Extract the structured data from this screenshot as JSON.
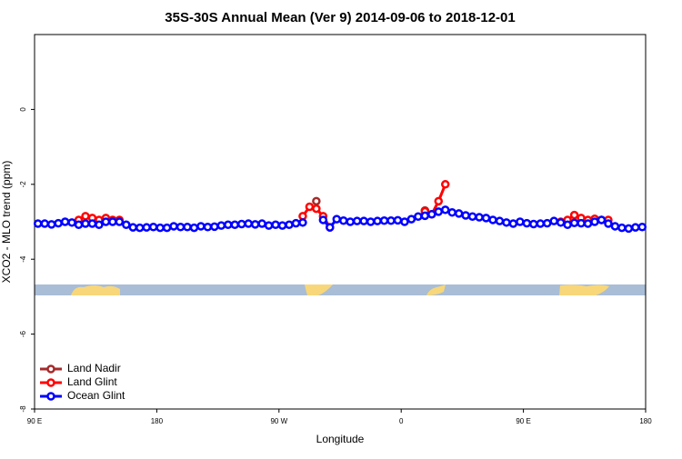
{
  "chart_data": {
    "type": "line",
    "title": "35S-30S Annual Mean (Ver 9)   2014-09-06 to 2018-12-01",
    "x_label": "Longitude",
    "y_label": "XCO2 - MLO trend (ppm)",
    "xlim": [
      90,
      540
    ],
    "xticks": [
      {
        "value": 90,
        "label": "90 E"
      },
      {
        "value": 180,
        "label": "180"
      },
      {
        "value": 270,
        "label": "90 W"
      },
      {
        "value": 360,
        "label": "0"
      },
      {
        "value": 450,
        "label": "90 E"
      },
      {
        "value": 540,
        "label": "180"
      }
    ],
    "ylim": [
      -8,
      2
    ],
    "yticks": [
      -8,
      -6,
      -4,
      -2,
      0
    ],
    "legend": "bottom-left",
    "x": [
      92.5,
      97.5,
      102.5,
      107.5,
      112.5,
      117.5,
      122.5,
      127.5,
      132.5,
      137.5,
      142.5,
      147.5,
      152.5,
      157.5,
      162.5,
      167.5,
      172.5,
      177.5,
      182.5,
      187.5,
      192.5,
      197.5,
      202.5,
      207.5,
      212.5,
      217.5,
      222.5,
      227.5,
      232.5,
      237.5,
      242.5,
      247.5,
      252.5,
      257.5,
      262.5,
      267.5,
      272.5,
      277.5,
      282.5,
      287.5,
      292.5,
      297.5,
      302.5,
      307.5,
      312.5,
      317.5,
      322.5,
      327.5,
      332.5,
      337.5,
      342.5,
      347.5,
      352.5,
      357.5,
      362.5,
      367.5,
      372.5,
      377.5,
      382.5,
      387.5,
      392.5,
      397.5,
      402.5,
      407.5,
      412.5,
      417.5,
      422.5,
      427.5,
      432.5,
      437.5,
      442.5,
      447.5,
      452.5,
      457.5,
      462.5,
      467.5,
      472.5,
      477.5,
      482.5,
      487.5,
      492.5,
      497.5,
      502.5,
      507.5,
      512.5,
      517.5,
      522.5,
      527.5,
      532.5,
      537.5
    ],
    "series": [
      {
        "name": "Land Nadir",
        "color": "#a52a2a",
        "values": [
          null,
          null,
          null,
          null,
          null,
          null,
          null,
          null,
          null,
          null,
          null,
          null,
          null,
          null,
          null,
          null,
          null,
          null,
          null,
          null,
          null,
          null,
          null,
          null,
          null,
          null,
          null,
          null,
          null,
          null,
          null,
          null,
          null,
          null,
          null,
          null,
          null,
          null,
          null,
          null,
          null,
          -2.45,
          null,
          null,
          null,
          null,
          null,
          null,
          null,
          null,
          null,
          null,
          null,
          null,
          null,
          null,
          null,
          -2.7,
          null,
          null,
          null,
          null,
          null,
          null,
          null,
          null,
          null,
          null,
          null,
          null,
          null,
          null,
          null,
          null,
          null,
          null,
          null,
          null,
          null,
          null,
          null,
          null,
          null,
          null,
          null,
          null,
          null,
          null,
          null,
          null
        ]
      },
      {
        "name": "Land Glint",
        "color": "#ff0000",
        "values": [
          null,
          null,
          null,
          null,
          null,
          null,
          -2.95,
          -2.85,
          -2.9,
          -2.95,
          -2.9,
          -2.95,
          -2.95,
          null,
          null,
          null,
          null,
          null,
          null,
          null,
          null,
          null,
          null,
          null,
          null,
          null,
          null,
          null,
          null,
          null,
          null,
          null,
          null,
          null,
          null,
          null,
          null,
          null,
          null,
          -2.85,
          -2.6,
          -2.65,
          -2.85,
          -3.15,
          null,
          null,
          null,
          null,
          null,
          null,
          null,
          null,
          null,
          null,
          null,
          null,
          null,
          -2.72,
          -2.8,
          -2.45,
          -2.0,
          null,
          null,
          null,
          null,
          null,
          null,
          null,
          null,
          null,
          null,
          null,
          null,
          null,
          null,
          null,
          null,
          -3.0,
          -2.95,
          -2.82,
          -2.9,
          -2.95,
          -2.92,
          -2.95,
          -2.95,
          null,
          null,
          null,
          null,
          null
        ]
      },
      {
        "name": "Ocean Glint",
        "color": "#0000ff",
        "values": [
          -3.05,
          -3.05,
          -3.07,
          -3.04,
          -3.0,
          -3.02,
          -3.08,
          -3.05,
          -3.05,
          -3.08,
          -3.0,
          -3.0,
          -3.0,
          -3.08,
          -3.15,
          -3.16,
          -3.15,
          -3.14,
          -3.16,
          -3.16,
          -3.12,
          -3.14,
          -3.14,
          -3.16,
          -3.12,
          -3.14,
          -3.13,
          -3.1,
          -3.08,
          -3.08,
          -3.06,
          -3.05,
          -3.07,
          -3.05,
          -3.1,
          -3.08,
          -3.1,
          -3.08,
          -3.04,
          -3.02,
          null,
          null,
          -2.95,
          -3.15,
          -2.93,
          -2.97,
          -3.0,
          -2.98,
          -2.98,
          -3.0,
          -2.98,
          -2.97,
          -2.97,
          -2.96,
          -3.0,
          -2.93,
          -2.86,
          -2.84,
          -2.8,
          -2.73,
          -2.68,
          -2.75,
          -2.78,
          -2.83,
          -2.86,
          -2.88,
          -2.9,
          -2.95,
          -2.98,
          -3.02,
          -3.05,
          -3.0,
          -3.04,
          -3.06,
          -3.05,
          -3.04,
          -2.98,
          -3.02,
          -3.08,
          -3.03,
          -3.04,
          -3.05,
          -3.0,
          -2.95,
          -3.05,
          -3.12,
          -3.16,
          -3.18,
          -3.15,
          -3.14
        ]
      }
    ]
  }
}
